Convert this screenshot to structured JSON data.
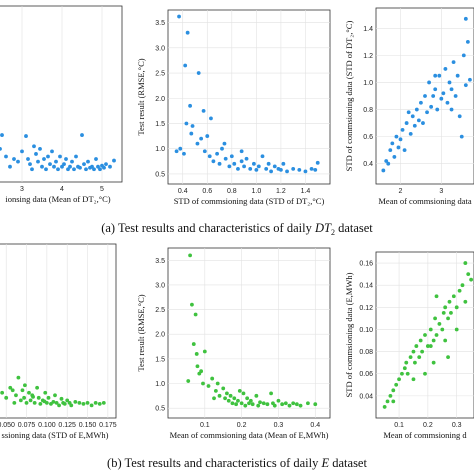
{
  "captions": {
    "top": {
      "prefix": "(a) Test results and characteristics of daily ",
      "var": "DT",
      "sub": "2",
      "suffix": " dataset"
    },
    "bottom": {
      "prefix": "(b) Test results and characteristics of daily ",
      "var": "E",
      "suffix": " dataset"
    }
  },
  "chart_data": [
    {
      "id": "a1",
      "type": "scatter",
      "color": "#2b8fe0",
      "xlabel": "ionsing data (Mean of DT₂,°C)",
      "ylabel": "",
      "xlim": [
        2.3,
        5.5
      ],
      "ylim": [
        0.3,
        3.75
      ],
      "xticks": [
        3,
        4,
        5
      ],
      "xtick_labels": [
        "3",
        "4",
        "5"
      ],
      "yticks": [],
      "ytick_labels": [],
      "points": [
        [
          2.5,
          1.22
        ],
        [
          2.45,
          0.95
        ],
        [
          2.6,
          0.8
        ],
        [
          2.7,
          0.6
        ],
        [
          2.9,
          0.7
        ],
        [
          3.0,
          0.9
        ],
        [
          3.1,
          1.2
        ],
        [
          3.15,
          0.75
        ],
        [
          3.2,
          0.65
        ],
        [
          3.3,
          1.0
        ],
        [
          3.35,
          0.85
        ],
        [
          3.4,
          0.7
        ],
        [
          3.45,
          0.95
        ],
        [
          3.5,
          0.6
        ],
        [
          3.55,
          0.75
        ],
        [
          3.6,
          0.55
        ],
        [
          3.65,
          0.8
        ],
        [
          3.7,
          0.65
        ],
        [
          3.75,
          0.9
        ],
        [
          3.8,
          0.6
        ],
        [
          3.85,
          0.7
        ],
        [
          3.9,
          0.55
        ],
        [
          3.95,
          0.8
        ],
        [
          4.0,
          0.6
        ],
        [
          4.05,
          0.65
        ],
        [
          4.1,
          0.75
        ],
        [
          4.15,
          0.55
        ],
        [
          4.2,
          0.6
        ],
        [
          4.25,
          0.7
        ],
        [
          4.3,
          0.55
        ],
        [
          4.35,
          0.8
        ],
        [
          4.4,
          0.6
        ],
        [
          4.45,
          0.58
        ],
        [
          4.5,
          1.22
        ],
        [
          4.55,
          0.65
        ],
        [
          4.6,
          0.55
        ],
        [
          4.65,
          0.7
        ],
        [
          4.7,
          0.58
        ],
        [
          4.75,
          0.6
        ],
        [
          4.8,
          0.55
        ],
        [
          4.85,
          0.75
        ],
        [
          4.9,
          0.6
        ],
        [
          4.95,
          0.55
        ],
        [
          5.0,
          0.62
        ],
        [
          5.05,
          0.58
        ],
        [
          5.1,
          0.65
        ],
        [
          5.2,
          0.6
        ],
        [
          5.3,
          0.72
        ],
        [
          3.25,
          0.55
        ],
        [
          2.8,
          0.75
        ]
      ]
    },
    {
      "id": "a2",
      "type": "scatter",
      "color": "#2b8fe0",
      "xlabel": "STD of commsioning data (STD of DT₂,°C)",
      "ylabel": "Test result (RMSE,°C)",
      "xlim": [
        0.28,
        1.6
      ],
      "ylim": [
        0.3,
        3.75
      ],
      "xticks": [
        0.4,
        0.6,
        0.8,
        1.0,
        1.2,
        1.4
      ],
      "xtick_labels": [
        "0.4",
        "0.6",
        "0.8",
        "1.0",
        "1.2",
        "1.4"
      ],
      "yticks": [
        0.5,
        1.0,
        1.5,
        2.0,
        2.5,
        3.0,
        3.5
      ],
      "ytick_labels": [
        "0.5",
        "1.0",
        "1.5",
        "2.0",
        "2.5",
        "3.0",
        "3.5"
      ],
      "points": [
        [
          0.37,
          3.62
        ],
        [
          0.44,
          3.3
        ],
        [
          0.42,
          2.65
        ],
        [
          0.53,
          2.5
        ],
        [
          0.43,
          1.5
        ],
        [
          0.48,
          1.45
        ],
        [
          0.46,
          1.85
        ],
        [
          0.38,
          1.0
        ],
        [
          0.41,
          0.9
        ],
        [
          0.47,
          1.3
        ],
        [
          0.52,
          1.1
        ],
        [
          0.55,
          1.2
        ],
        [
          0.58,
          0.95
        ],
        [
          0.6,
          1.25
        ],
        [
          0.62,
          0.85
        ],
        [
          0.65,
          0.75
        ],
        [
          0.68,
          0.9
        ],
        [
          0.7,
          0.7
        ],
        [
          0.72,
          1.0
        ],
        [
          0.75,
          0.8
        ],
        [
          0.78,
          0.65
        ],
        [
          0.8,
          0.85
        ],
        [
          0.82,
          0.7
        ],
        [
          0.85,
          0.6
        ],
        [
          0.88,
          0.75
        ],
        [
          0.9,
          0.65
        ],
        [
          0.92,
          0.8
        ],
        [
          0.95,
          0.6
        ],
        [
          0.98,
          0.7
        ],
        [
          1.0,
          0.58
        ],
        [
          1.02,
          0.65
        ],
        [
          1.05,
          0.85
        ],
        [
          1.08,
          0.6
        ],
        [
          1.1,
          0.7
        ],
        [
          1.12,
          0.55
        ],
        [
          1.15,
          0.65
        ],
        [
          1.18,
          0.6
        ],
        [
          1.2,
          0.58
        ],
        [
          1.22,
          0.7
        ],
        [
          1.25,
          0.55
        ],
        [
          1.3,
          0.6
        ],
        [
          1.35,
          0.58
        ],
        [
          1.4,
          0.55
        ],
        [
          1.45,
          0.6
        ],
        [
          1.5,
          0.72
        ],
        [
          1.48,
          0.58
        ],
        [
          0.57,
          1.75
        ],
        [
          0.63,
          1.6
        ],
        [
          0.74,
          1.1
        ],
        [
          0.88,
          0.95
        ],
        [
          0.35,
          0.95
        ]
      ]
    },
    {
      "id": "a3",
      "type": "scatter",
      "color": "#2b8fe0",
      "xlabel": "Mean of commsioning data",
      "ylabel": "STD of commsioning data (STD of DT₂,°C)",
      "xlim": [
        1.4,
        3.8
      ],
      "ylim": [
        0.25,
        1.55
      ],
      "xticks": [
        2,
        3
      ],
      "xtick_labels": [
        "2",
        "3"
      ],
      "yticks": [
        0.4,
        0.6,
        0.8,
        1.0,
        1.2,
        1.4
      ],
      "ytick_labels": [
        "0.4",
        "0.6",
        "0.8",
        "1.0",
        "1.2",
        "1.4"
      ],
      "points": [
        [
          1.58,
          0.35
        ],
        [
          1.65,
          0.42
        ],
        [
          1.7,
          0.4
        ],
        [
          1.75,
          0.5
        ],
        [
          1.8,
          0.55
        ],
        [
          1.85,
          0.45
        ],
        [
          1.9,
          0.6
        ],
        [
          1.95,
          0.52
        ],
        [
          2.0,
          0.58
        ],
        [
          2.05,
          0.65
        ],
        [
          2.1,
          0.5
        ],
        [
          2.15,
          0.7
        ],
        [
          2.2,
          0.78
        ],
        [
          2.25,
          0.62
        ],
        [
          2.3,
          0.75
        ],
        [
          2.35,
          0.68
        ],
        [
          2.4,
          0.8
        ],
        [
          2.45,
          0.72
        ],
        [
          2.5,
          0.85
        ],
        [
          2.55,
          0.7
        ],
        [
          2.6,
          0.9
        ],
        [
          2.65,
          0.78
        ],
        [
          2.7,
          1.0
        ],
        [
          2.75,
          0.82
        ],
        [
          2.8,
          0.9
        ],
        [
          2.85,
          0.95
        ],
        [
          2.9,
          0.8
        ],
        [
          2.95,
          1.05
        ],
        [
          3.0,
          0.88
        ],
        [
          3.05,
          0.92
        ],
        [
          3.1,
          1.1
        ],
        [
          3.15,
          0.85
        ],
        [
          3.2,
          1.0
        ],
        [
          3.25,
          0.95
        ],
        [
          3.3,
          1.15
        ],
        [
          3.35,
          0.9
        ],
        [
          3.4,
          1.05
        ],
        [
          3.45,
          0.75
        ],
        [
          3.5,
          0.6
        ],
        [
          3.55,
          1.2
        ],
        [
          3.6,
          0.98
        ],
        [
          3.65,
          1.3
        ],
        [
          3.7,
          1.02
        ],
        [
          3.25,
          0.8
        ],
        [
          2.85,
          1.05
        ],
        [
          3.6,
          1.47
        ]
      ]
    },
    {
      "id": "b1",
      "type": "scatter",
      "color": "#3fc23f",
      "xlabel": "ssioning data (STD of E,MWh)",
      "ylabel": "",
      "xlim": [
        0.035,
        0.185
      ],
      "ylim": [
        0.3,
        3.75
      ],
      "xticks": [
        0.05,
        0.075,
        0.1,
        0.125,
        0.15,
        0.175
      ],
      "xtick_labels": [
        "0.050",
        "0.075",
        "0.100",
        "0.125",
        "0.150",
        "0.175"
      ],
      "yticks": [],
      "ytick_labels": [],
      "points": [
        [
          0.04,
          0.95
        ],
        [
          0.045,
          0.8
        ],
        [
          0.05,
          0.7
        ],
        [
          0.055,
          0.9
        ],
        [
          0.06,
          0.6
        ],
        [
          0.062,
          0.75
        ],
        [
          0.065,
          1.1
        ],
        [
          0.068,
          0.65
        ],
        [
          0.07,
          0.85
        ],
        [
          0.072,
          0.7
        ],
        [
          0.075,
          0.6
        ],
        [
          0.078,
          0.8
        ],
        [
          0.08,
          0.65
        ],
        [
          0.082,
          0.75
        ],
        [
          0.085,
          0.6
        ],
        [
          0.088,
          0.9
        ],
        [
          0.09,
          0.7
        ],
        [
          0.092,
          0.58
        ],
        [
          0.095,
          0.65
        ],
        [
          0.098,
          0.8
        ],
        [
          0.1,
          0.6
        ],
        [
          0.102,
          0.7
        ],
        [
          0.105,
          0.58
        ],
        [
          0.108,
          0.62
        ],
        [
          0.11,
          0.75
        ],
        [
          0.112,
          0.6
        ],
        [
          0.115,
          0.55
        ],
        [
          0.118,
          0.68
        ],
        [
          0.12,
          0.6
        ],
        [
          0.122,
          0.58
        ],
        [
          0.125,
          0.65
        ],
        [
          0.128,
          0.6
        ],
        [
          0.13,
          0.55
        ],
        [
          0.135,
          0.62
        ],
        [
          0.14,
          0.6
        ],
        [
          0.145,
          0.58
        ],
        [
          0.15,
          0.6
        ],
        [
          0.155,
          0.55
        ],
        [
          0.16,
          0.6
        ],
        [
          0.165,
          0.58
        ],
        [
          0.17,
          0.6
        ],
        [
          0.058,
          0.85
        ],
        [
          0.073,
          0.95
        ],
        [
          0.083,
          0.72
        ],
        [
          0.097,
          0.63
        ]
      ]
    },
    {
      "id": "b2",
      "type": "scatter",
      "color": "#3fc23f",
      "xlabel": "Mean of commsioning data (Mean of E,MWh)",
      "ylabel": "Test result (RMSE,°C)",
      "xlim": [
        0.0,
        0.44
      ],
      "ylim": [
        0.3,
        3.75
      ],
      "xticks": [
        0.1,
        0.2,
        0.3,
        0.4
      ],
      "xtick_labels": [
        "0.1",
        "0.2",
        "0.3",
        "0.4"
      ],
      "yticks": [
        0.5,
        1.0,
        1.5,
        2.0,
        2.5,
        3.0,
        3.5
      ],
      "ytick_labels": [
        "0.5",
        "1.0",
        "1.5",
        "2.0",
        "2.5",
        "3.0",
        "3.5"
      ],
      "points": [
        [
          0.06,
          3.6
        ],
        [
          0.065,
          2.6
        ],
        [
          0.075,
          2.4
        ],
        [
          0.07,
          1.8
        ],
        [
          0.078,
          1.6
        ],
        [
          0.08,
          1.35
        ],
        [
          0.1,
          1.65
        ],
        [
          0.085,
          1.2
        ],
        [
          0.095,
          1.0
        ],
        [
          0.11,
          0.95
        ],
        [
          0.12,
          1.1
        ],
        [
          0.13,
          0.85
        ],
        [
          0.135,
          1.0
        ],
        [
          0.14,
          0.75
        ],
        [
          0.15,
          0.9
        ],
        [
          0.155,
          0.7
        ],
        [
          0.16,
          0.8
        ],
        [
          0.165,
          0.65
        ],
        [
          0.17,
          0.75
        ],
        [
          0.175,
          0.6
        ],
        [
          0.18,
          0.7
        ],
        [
          0.185,
          0.58
        ],
        [
          0.19,
          0.65
        ],
        [
          0.2,
          0.6
        ],
        [
          0.205,
          0.8
        ],
        [
          0.21,
          0.55
        ],
        [
          0.215,
          0.7
        ],
        [
          0.22,
          0.6
        ],
        [
          0.225,
          0.65
        ],
        [
          0.23,
          0.58
        ],
        [
          0.24,
          0.75
        ],
        [
          0.245,
          0.55
        ],
        [
          0.25,
          0.62
        ],
        [
          0.26,
          0.6
        ],
        [
          0.27,
          0.58
        ],
        [
          0.28,
          0.8
        ],
        [
          0.285,
          0.6
        ],
        [
          0.29,
          0.55
        ],
        [
          0.3,
          0.65
        ],
        [
          0.31,
          0.58
        ],
        [
          0.32,
          0.6
        ],
        [
          0.33,
          0.55
        ],
        [
          0.34,
          0.6
        ],
        [
          0.35,
          0.58
        ],
        [
          0.36,
          0.55
        ],
        [
          0.38,
          0.6
        ],
        [
          0.4,
          0.58
        ],
        [
          0.055,
          1.05
        ],
        [
          0.09,
          1.25
        ],
        [
          0.125,
          0.7
        ],
        [
          0.195,
          0.85
        ]
      ]
    },
    {
      "id": "b3",
      "type": "scatter",
      "color": "#3fc23f",
      "xlabel": "Mean of commsioning d",
      "ylabel": "STD of commsioning data (E,MWh)",
      "xlim": [
        0.02,
        0.36
      ],
      "ylim": [
        0.02,
        0.17
      ],
      "xticks": [
        0.1,
        0.2,
        0.3
      ],
      "xtick_labels": [
        "0.1",
        "0.2",
        "0.3"
      ],
      "yticks": [
        0.04,
        0.06,
        0.08,
        0.1,
        0.12,
        0.14,
        0.16
      ],
      "ytick_labels": [
        "0.04",
        "0.06",
        "0.08",
        "0.10",
        "0.12",
        "0.14",
        "0.16"
      ],
      "points": [
        [
          0.05,
          0.03
        ],
        [
          0.06,
          0.035
        ],
        [
          0.07,
          0.04
        ],
        [
          0.08,
          0.045
        ],
        [
          0.09,
          0.05
        ],
        [
          0.1,
          0.055
        ],
        [
          0.11,
          0.06
        ],
        [
          0.12,
          0.065
        ],
        [
          0.125,
          0.07
        ],
        [
          0.13,
          0.06
        ],
        [
          0.14,
          0.075
        ],
        [
          0.15,
          0.08
        ],
        [
          0.155,
          0.07
        ],
        [
          0.16,
          0.085
        ],
        [
          0.17,
          0.075
        ],
        [
          0.175,
          0.09
        ],
        [
          0.18,
          0.08
        ],
        [
          0.19,
          0.095
        ],
        [
          0.2,
          0.085
        ],
        [
          0.21,
          0.1
        ],
        [
          0.22,
          0.09
        ],
        [
          0.225,
          0.11
        ],
        [
          0.23,
          0.095
        ],
        [
          0.24,
          0.105
        ],
        [
          0.25,
          0.1
        ],
        [
          0.255,
          0.115
        ],
        [
          0.26,
          0.12
        ],
        [
          0.27,
          0.11
        ],
        [
          0.275,
          0.125
        ],
        [
          0.28,
          0.115
        ],
        [
          0.29,
          0.13
        ],
        [
          0.3,
          0.12
        ],
        [
          0.31,
          0.135
        ],
        [
          0.32,
          0.14
        ],
        [
          0.33,
          0.125
        ],
        [
          0.34,
          0.15
        ],
        [
          0.35,
          0.145
        ],
        [
          0.19,
          0.06
        ],
        [
          0.22,
          0.07
        ],
        [
          0.26,
          0.09
        ],
        [
          0.3,
          0.1
        ],
        [
          0.08,
          0.035
        ],
        [
          0.27,
          0.075
        ],
        [
          0.23,
          0.13
        ],
        [
          0.33,
          0.16
        ],
        [
          0.15,
          0.055
        ],
        [
          0.21,
          0.085
        ]
      ]
    }
  ]
}
